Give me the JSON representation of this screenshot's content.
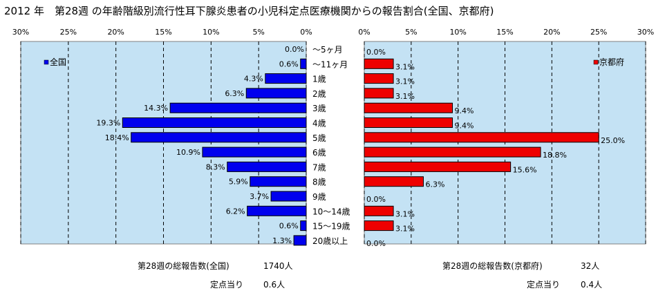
{
  "title": "2012 年　第28週 の年齢階級別流行性耳下腺炎患者の小児科定点医療機関からの報告割合(全国、京都府)",
  "colors": {
    "nation_bar": "#0000ee",
    "kyoto_bar": "#ee0000",
    "plot_bg": "#c4e2f4",
    "grid": "#000000"
  },
  "chart_data": [
    {
      "type": "bar",
      "orientation": "horizontal-reversed",
      "legend": "全国",
      "legend_position": "top-left",
      "xlim": [
        0,
        30
      ],
      "ticks": [
        "30%",
        "25%",
        "20%",
        "15%",
        "10%",
        "5%",
        "0%"
      ],
      "categories": [
        "～5ヶ月",
        "～11ヶ月",
        "1歳",
        "2歳",
        "3歳",
        "4歳",
        "5歳",
        "6歳",
        "7歳",
        "8歳",
        "9歳",
        "10～14歳",
        "15～19歳",
        "20歳以上"
      ],
      "values": [
        0.0,
        0.6,
        4.3,
        6.3,
        14.3,
        19.3,
        18.4,
        10.9,
        8.3,
        5.9,
        3.7,
        6.2,
        0.6,
        1.3
      ],
      "labels": [
        "0.0%",
        "0.6%",
        "4.3%",
        "6.3%",
        "14.3%",
        "19.3%",
        "18.4%",
        "10.9%",
        "8.3%",
        "5.9%",
        "3.7%",
        "6.2%",
        "0.6%",
        "1.3%"
      ]
    },
    {
      "type": "bar",
      "orientation": "horizontal",
      "legend": "京都府",
      "legend_position": "top-right",
      "xlim": [
        0,
        30
      ],
      "ticks": [
        "0%",
        "5%",
        "10%",
        "15%",
        "20%",
        "25%",
        "30%"
      ],
      "categories": [
        "～5ヶ月",
        "～11ヶ月",
        "1歳",
        "2歳",
        "3歳",
        "4歳",
        "5歳",
        "6歳",
        "7歳",
        "8歳",
        "9歳",
        "10～14歳",
        "15～19歳",
        "20歳以上"
      ],
      "values": [
        0.0,
        3.1,
        3.1,
        3.1,
        9.4,
        9.4,
        25.0,
        18.8,
        15.6,
        6.3,
        0.0,
        3.1,
        3.1,
        0.0
      ],
      "labels": [
        "0.0%",
        "3.1%",
        "3.1%",
        "3.1%",
        "9.4%",
        "9.4%",
        "25.0%",
        "18.8%",
        "15.6%",
        "6.3%",
        "0.0%",
        "3.1%",
        "3.1%",
        "0.0%"
      ]
    }
  ],
  "footer": {
    "nation_total_label": "第28週の総報告数(全国)",
    "nation_total_value": "1740人",
    "nation_per_label": "定点当り",
    "nation_per_value": "0.6人",
    "kyoto_total_label": "第28週の総報告数(京都府)",
    "kyoto_total_value": "32人",
    "kyoto_per_label": "定点当り",
    "kyoto_per_value": "0.4人"
  }
}
